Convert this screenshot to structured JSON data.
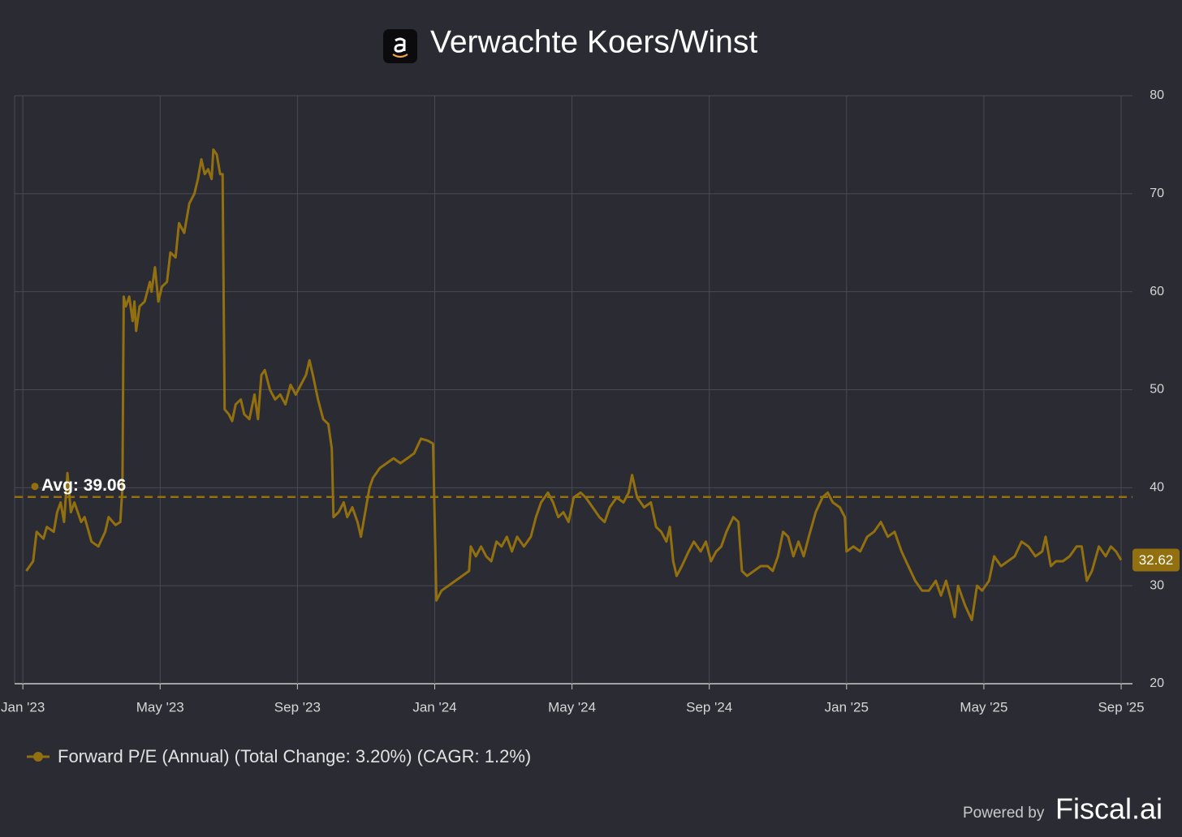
{
  "chart_data": {
    "type": "line",
    "title": "Verwachte Koers/Winst",
    "xlim": [
      -0.24,
      32.33
    ],
    "xticks": [
      {
        "value": 0,
        "label": "Jan '23"
      },
      {
        "value": 4,
        "label": "May '23"
      },
      {
        "value": 8,
        "label": "Sep '23"
      },
      {
        "value": 12,
        "label": "Jan '24"
      },
      {
        "value": 16,
        "label": "May '24"
      },
      {
        "value": 20,
        "label": "Sep '24"
      },
      {
        "value": 24,
        "label": "Jan '25"
      },
      {
        "value": 28,
        "label": "May '25"
      },
      {
        "value": 32,
        "label": "Sep '25"
      }
    ],
    "ylim": [
      20,
      80
    ],
    "yticks": [
      20,
      30,
      40,
      50,
      60,
      70,
      80
    ],
    "grid": true,
    "average": {
      "value": 39.06,
      "label": "Avg: 39.06"
    },
    "series": [
      {
        "name": "Forward P/E (Annual) (Total Change: 3.20%) (CAGR: 1.2%)",
        "color": "#93700f",
        "x": [
          0.1,
          0.3,
          0.4,
          0.6,
          0.7,
          0.9,
          1.0,
          1.1,
          1.2,
          1.3,
          1.4,
          1.5,
          1.7,
          1.8,
          2.0,
          2.2,
          2.4,
          2.5,
          2.7,
          2.84,
          2.9,
          2.94,
          3.0,
          3.1,
          3.2,
          3.25,
          3.3,
          3.4,
          3.55,
          3.7,
          3.75,
          3.85,
          3.95,
          4.05,
          4.2,
          4.3,
          4.45,
          4.55,
          4.7,
          4.85,
          5.0,
          5.1,
          5.2,
          5.3,
          5.4,
          5.5,
          5.55,
          5.65,
          5.75,
          5.82,
          5.88,
          6.0,
          6.1,
          6.2,
          6.35,
          6.45,
          6.6,
          6.75,
          6.85,
          6.95,
          7.05,
          7.2,
          7.35,
          7.5,
          7.65,
          7.8,
          7.95,
          8.1,
          8.25,
          8.35,
          8.45,
          8.6,
          8.75,
          8.9,
          9.0,
          9.05,
          9.2,
          9.35,
          9.45,
          9.6,
          9.75,
          9.85,
          9.95,
          10.1,
          10.2,
          10.4,
          10.6,
          10.8,
          11.0,
          11.2,
          11.4,
          11.6,
          11.8,
          11.95,
          12.05,
          12.2,
          12.4,
          12.6,
          12.8,
          13.0,
          13.05,
          13.2,
          13.35,
          13.5,
          13.65,
          13.8,
          13.95,
          14.1,
          14.25,
          14.4,
          14.6,
          14.8,
          14.95,
          15.1,
          15.3,
          15.45,
          15.6,
          15.75,
          15.9,
          16.05,
          16.25,
          16.4,
          16.6,
          16.8,
          16.95,
          17.1,
          17.3,
          17.5,
          17.65,
          17.75,
          17.9,
          18.1,
          18.3,
          18.45,
          18.6,
          18.75,
          18.85,
          18.95,
          19.05,
          19.2,
          19.4,
          19.55,
          19.75,
          19.9,
          20.05,
          20.2,
          20.35,
          20.5,
          20.7,
          20.85,
          20.95,
          21.1,
          21.3,
          21.5,
          21.7,
          21.85,
          22.0,
          22.15,
          22.3,
          22.45,
          22.6,
          22.75,
          22.9,
          23.1,
          23.3,
          23.45,
          23.6,
          23.8,
          23.95,
          24.0,
          24.2,
          24.4,
          24.6,
          24.8,
          25.0,
          25.2,
          25.4,
          25.6,
          25.8,
          26.0,
          26.2,
          26.4,
          26.6,
          26.75,
          26.9,
          27.05,
          27.15,
          27.25,
          27.45,
          27.65,
          27.8,
          27.95,
          28.15,
          28.3,
          28.5,
          28.7,
          28.9,
          29.1,
          29.3,
          29.5,
          29.7,
          29.8,
          29.95,
          30.1,
          30.3,
          30.5,
          30.7,
          30.85,
          31.0,
          31.15,
          31.35,
          31.55,
          31.7,
          31.85,
          32.0
        ],
        "values": [
          31.5,
          32.5,
          35.5,
          34.8,
          36,
          35.5,
          37.5,
          38.5,
          36.5,
          41.5,
          37.5,
          38.5,
          36.5,
          37,
          34.5,
          34,
          35.5,
          37,
          36.2,
          36.5,
          40,
          59.5,
          58.5,
          59.5,
          57,
          59,
          56,
          58.5,
          59,
          61,
          60,
          62.5,
          59,
          60.5,
          61,
          64,
          63.5,
          67,
          66,
          69,
          70,
          71.5,
          73.5,
          72,
          72.5,
          71.5,
          74.5,
          74,
          72,
          72,
          48,
          47.5,
          46.8,
          48.5,
          49,
          47.5,
          47,
          49.5,
          47,
          51.5,
          52,
          50,
          49,
          49.5,
          48.5,
          50.5,
          49.5,
          50.5,
          51.5,
          53,
          51.5,
          49,
          47,
          46.5,
          44,
          37,
          37.5,
          38.5,
          37,
          38,
          36.5,
          35,
          37,
          40,
          41,
          42,
          42.5,
          43,
          42.5,
          43,
          43.5,
          45,
          44.8,
          44.5,
          28.5,
          29.5,
          30,
          30.5,
          31,
          31.5,
          34,
          33,
          34,
          33,
          32.5,
          34.5,
          34,
          35,
          33.5,
          35,
          34,
          35,
          37,
          38.5,
          39.5,
          38.5,
          37,
          37.5,
          36.5,
          39,
          39.5,
          39,
          38,
          37,
          36.5,
          38,
          39,
          38.5,
          39.5,
          41.3,
          39,
          38,
          38.5,
          36,
          35.5,
          34.5,
          36,
          32.5,
          31,
          32,
          33.5,
          34.5,
          33.5,
          34.5,
          32.5,
          33.5,
          34,
          35.5,
          37,
          36.5,
          31.5,
          31,
          31.5,
          32,
          32,
          31.5,
          33,
          35.5,
          35,
          33,
          34.5,
          33,
          35,
          37.5,
          39,
          39.5,
          38.5,
          38,
          37,
          33.5,
          34,
          33.5,
          35,
          35.5,
          36.5,
          35,
          35.5,
          33.5,
          32,
          30.5,
          29.5,
          29.5,
          30.5,
          29,
          30.5,
          28.5,
          26.8,
          30,
          28,
          26.5,
          30,
          29.5,
          30.5,
          33,
          32,
          32.5,
          33,
          34.5,
          34,
          33,
          33.5,
          35,
          32,
          32.5,
          32.5,
          33,
          34,
          34,
          30.5,
          31.5,
          34,
          33,
          34,
          33.5,
          32.62
        ]
      }
    ],
    "footer": {
      "prefix": "Powered by",
      "brand": "Fiscal.ai"
    }
  }
}
